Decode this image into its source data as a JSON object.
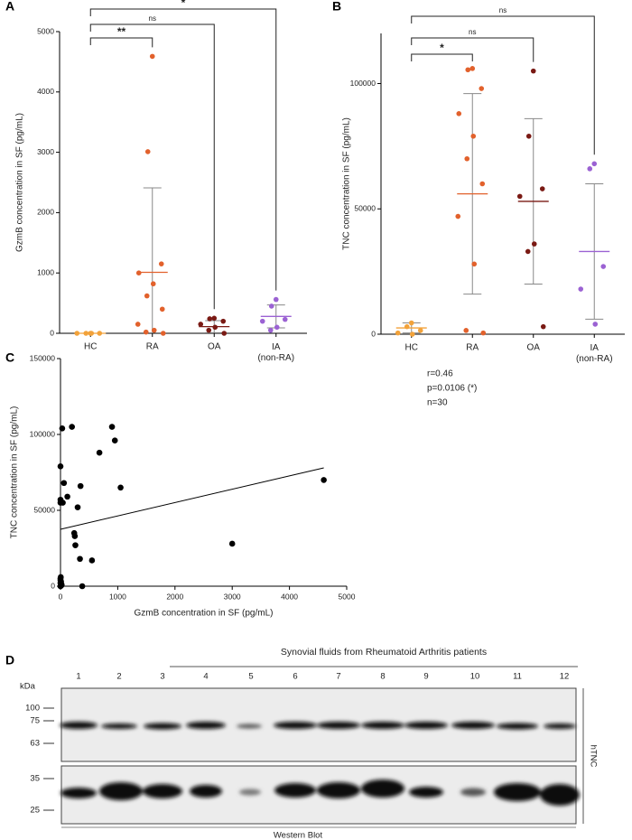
{
  "chart_data": [
    {
      "type": "dot",
      "panel": "A",
      "y_label": "GzmB concentration in SF (pg/mL)",
      "categories": [
        "HC",
        "RA",
        "OA",
        "IA (non-RA)"
      ],
      "colors": [
        "#f2a23a",
        "#e2612c",
        "#7a1a14",
        "#9b62d3"
      ],
      "points": [
        [
          0,
          0,
          0,
          0,
          0
        ],
        [
          4590,
          3010,
          1150,
          1000,
          820,
          620,
          400,
          150,
          50,
          20,
          0
        ],
        [
          250,
          240,
          200,
          150,
          100,
          50,
          0
        ],
        [
          560,
          450,
          230,
          200,
          100,
          50
        ]
      ],
      "mean": [
        0,
        1010,
        110,
        280
      ],
      "sd": [
        0,
        1400,
        100,
        190
      ],
      "ylim": [
        0,
        5000
      ],
      "yticks": [
        0,
        1000,
        2000,
        3000,
        4000,
        5000
      ],
      "comparisons": [
        {
          "groups": [
            "HC",
            "RA"
          ],
          "label": "**"
        },
        {
          "groups": [
            "HC",
            "OA"
          ],
          "label": "ns"
        },
        {
          "groups": [
            "HC",
            "IA (non-RA)"
          ],
          "label": "*"
        }
      ]
    },
    {
      "type": "dot",
      "panel": "B",
      "y_label": "TNC concentration in SF (pg/mL)",
      "categories": [
        "HC",
        "RA",
        "OA",
        "IA (non-RA)"
      ],
      "colors": [
        "#f2a23a",
        "#e2612c",
        "#7a1a14",
        "#9b62d3"
      ],
      "points": [
        [
          4500,
          3000,
          1500,
          500,
          0
        ],
        [
          106000,
          105500,
          98000,
          88000,
          79000,
          70000,
          60000,
          47000,
          28000,
          1500,
          500
        ],
        [
          105000,
          79000,
          58000,
          55000,
          36000,
          33000,
          3000
        ],
        [
          68000,
          66000,
          27000,
          18000,
          4000
        ]
      ],
      "mean": [
        2500,
        56000,
        53000,
        33000
      ],
      "sd": [
        2000,
        40000,
        33000,
        27000
      ],
      "ylim": [
        0,
        120000
      ],
      "yticks": [
        0,
        50000,
        100000
      ],
      "comparisons": [
        {
          "groups": [
            "HC",
            "RA"
          ],
          "label": "*"
        },
        {
          "groups": [
            "HC",
            "OA"
          ],
          "label": "ns"
        },
        {
          "groups": [
            "HC",
            "IA (non-RA)"
          ],
          "label": "ns"
        }
      ]
    },
    {
      "type": "scatter",
      "panel": "C",
      "x_label": "GzmB concentration in SF (pg/mL)",
      "y_label": "TNC concentration in SF (pg/mL)",
      "x": [
        0,
        0,
        0,
        0,
        0,
        0,
        0,
        30,
        60,
        120,
        200,
        240,
        250,
        260,
        300,
        350,
        340,
        380,
        550,
        680,
        900,
        950,
        1050,
        3000,
        4600,
        10,
        20,
        5,
        40,
        15
      ],
      "y": [
        0,
        2000,
        4000,
        5000,
        79000,
        57000,
        55000,
        104000,
        68000,
        59000,
        105000,
        35000,
        33000,
        27000,
        52000,
        66000,
        18000,
        0,
        17000,
        88000,
        105000,
        96000,
        65000,
        28000,
        70000,
        3000,
        1000,
        6000,
        55000,
        500
      ],
      "color": "#000000",
      "trendline": {
        "x": [
          0,
          4600
        ],
        "y": [
          37500,
          78000
        ]
      },
      "annotations": [
        "r=0.46",
        "p=0.0106 (*)",
        "n=30"
      ],
      "xlim": [
        0,
        5000
      ],
      "xticks": [
        0,
        1000,
        2000,
        3000,
        4000,
        5000
      ],
      "ylim": [
        0,
        150000
      ],
      "yticks": [
        0,
        50000,
        100000,
        150000
      ]
    }
  ],
  "blot": {
    "panel": "D",
    "title": "Synovial fluids from Rheumatoid Arthritis patients",
    "lanes": [
      "1",
      "2",
      "3",
      "4",
      "5",
      "6",
      "7",
      "8",
      "9",
      "10",
      "11",
      "12"
    ],
    "unit": "kDa",
    "markers": [
      "100",
      "75",
      "63",
      "35",
      "25"
    ],
    "target": "hTNC",
    "caption": "Western Blot"
  }
}
